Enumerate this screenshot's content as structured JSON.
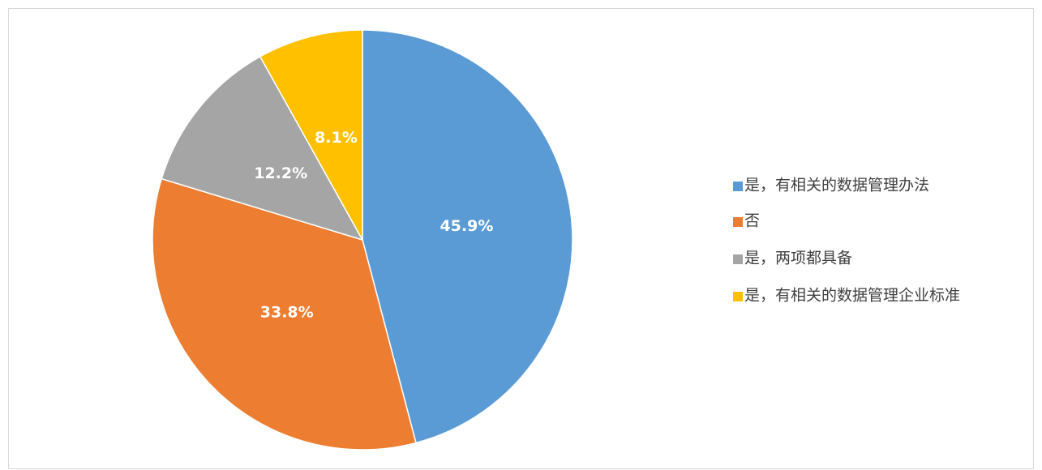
{
  "chart_data": {
    "type": "pie",
    "categories": [
      "是，有相关的数据管理办法",
      "否",
      "是，两项都具备",
      "是，有相关的数据管理企业标准"
    ],
    "values": [
      45.9,
      33.8,
      12.2,
      8.1
    ],
    "value_labels": [
      "45.9%",
      "33.8%",
      "12.2%",
      "8.1%"
    ],
    "colors": [
      "#5b9bd5",
      "#ed7d31",
      "#a5a5a5",
      "#ffc000"
    ],
    "legend": "right"
  }
}
